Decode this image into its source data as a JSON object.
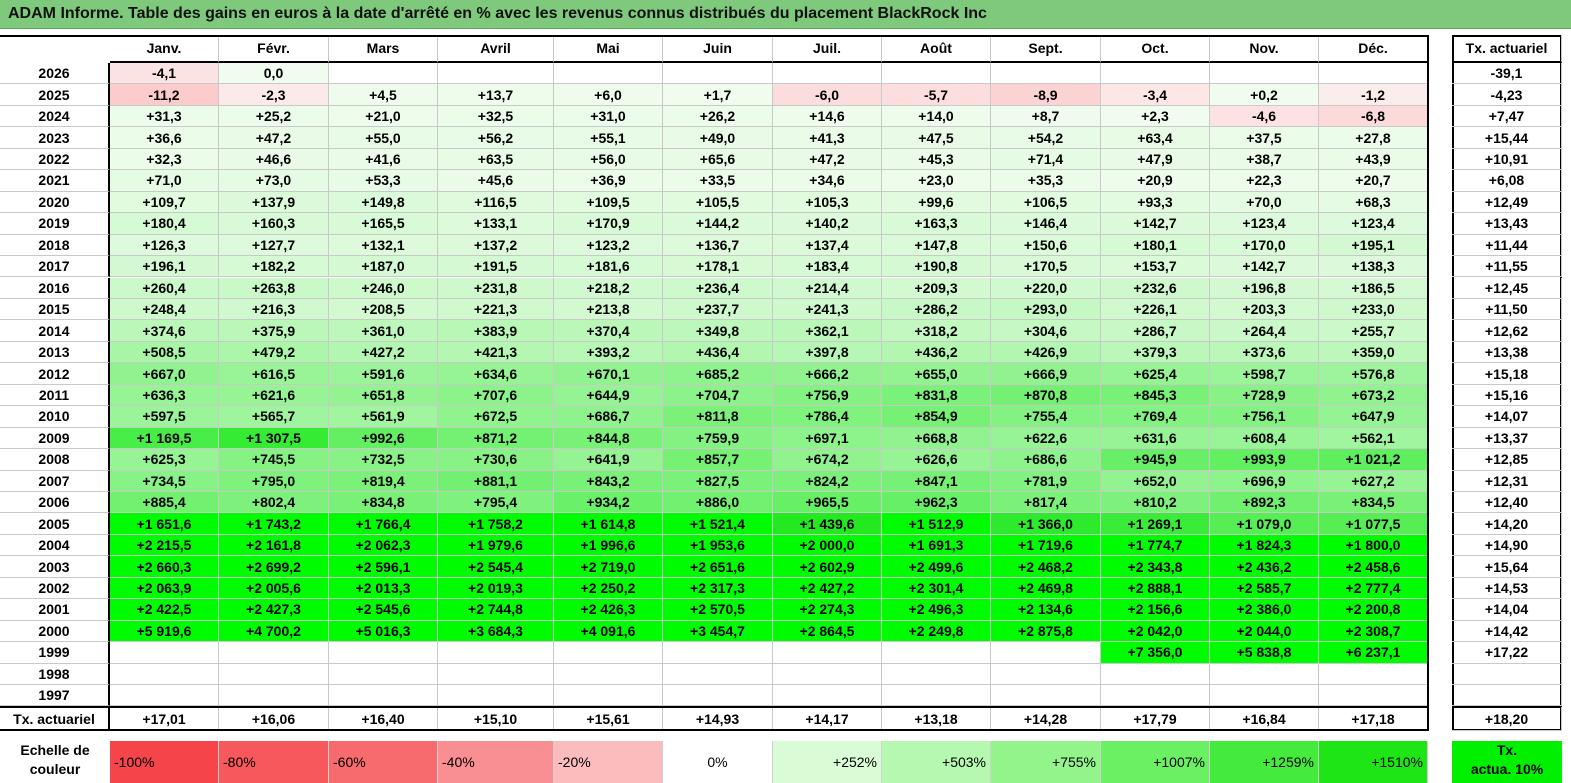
{
  "title": "ADAM Informe. Table des gains en euros à la date d'arrêté en % avec les revenus connus distribués du placement BlackRock Inc",
  "months": [
    "Janv.",
    "Févr.",
    "Mars",
    "Avril",
    "Mai",
    "Juin",
    "Juil.",
    "Août",
    "Sept.",
    "Oct.",
    "Nov.",
    "Déc."
  ],
  "tx_header": "Tx. actuariel",
  "rows": [
    {
      "year": "2026",
      "values": [
        "-4,1",
        "0,0",
        "",
        "",
        "",
        "",
        "",
        "",
        "",
        "",
        "",
        ""
      ],
      "tx": "-39,1"
    },
    {
      "year": "2025",
      "values": [
        "-11,2",
        "-2,3",
        "+4,5",
        "+13,7",
        "+6,0",
        "+1,7",
        "-6,0",
        "-5,7",
        "-8,9",
        "-3,4",
        "+0,2",
        "-1,2"
      ],
      "tx": "-4,23"
    },
    {
      "year": "2024",
      "values": [
        "+31,3",
        "+25,2",
        "+21,0",
        "+32,5",
        "+31,0",
        "+26,2",
        "+14,6",
        "+14,0",
        "+8,7",
        "+2,3",
        "-4,6",
        "-6,8"
      ],
      "tx": "+7,47"
    },
    {
      "year": "2023",
      "values": [
        "+36,6",
        "+47,2",
        "+55,0",
        "+56,2",
        "+55,1",
        "+49,0",
        "+41,3",
        "+47,5",
        "+54,2",
        "+63,4",
        "+37,5",
        "+27,8"
      ],
      "tx": "+15,44"
    },
    {
      "year": "2022",
      "values": [
        "+32,3",
        "+46,6",
        "+41,6",
        "+63,5",
        "+56,0",
        "+65,6",
        "+47,2",
        "+45,3",
        "+71,4",
        "+47,9",
        "+38,7",
        "+43,9"
      ],
      "tx": "+10,91"
    },
    {
      "year": "2021",
      "values": [
        "+71,0",
        "+73,0",
        "+53,3",
        "+45,6",
        "+36,9",
        "+33,5",
        "+34,6",
        "+23,0",
        "+35,3",
        "+20,9",
        "+22,3",
        "+20,7"
      ],
      "tx": "+6,08"
    },
    {
      "year": "2020",
      "values": [
        "+109,7",
        "+137,9",
        "+149,8",
        "+116,5",
        "+109,5",
        "+105,5",
        "+105,3",
        "+99,6",
        "+106,5",
        "+93,3",
        "+70,0",
        "+68,3"
      ],
      "tx": "+12,49"
    },
    {
      "year": "2019",
      "values": [
        "+180,4",
        "+160,3",
        "+165,5",
        "+133,1",
        "+170,9",
        "+144,2",
        "+140,2",
        "+163,3",
        "+146,4",
        "+142,7",
        "+123,4",
        "+123,4"
      ],
      "tx": "+13,43"
    },
    {
      "year": "2018",
      "values": [
        "+126,3",
        "+127,7",
        "+132,1",
        "+137,2",
        "+123,2",
        "+136,7",
        "+137,4",
        "+147,8",
        "+150,6",
        "+180,1",
        "+170,0",
        "+195,1"
      ],
      "tx": "+11,44"
    },
    {
      "year": "2017",
      "values": [
        "+196,1",
        "+182,2",
        "+187,0",
        "+191,5",
        "+181,6",
        "+178,1",
        "+183,4",
        "+190,8",
        "+170,5",
        "+153,7",
        "+142,7",
        "+138,3"
      ],
      "tx": "+11,55"
    },
    {
      "year": "2016",
      "values": [
        "+260,4",
        "+263,8",
        "+246,0",
        "+231,8",
        "+218,2",
        "+236,4",
        "+214,4",
        "+209,3",
        "+220,0",
        "+232,6",
        "+196,8",
        "+186,5"
      ],
      "tx": "+12,45"
    },
    {
      "year": "2015",
      "values": [
        "+248,4",
        "+216,3",
        "+208,5",
        "+221,3",
        "+213,8",
        "+237,7",
        "+241,3",
        "+286,2",
        "+293,0",
        "+226,1",
        "+203,3",
        "+233,0"
      ],
      "tx": "+11,50"
    },
    {
      "year": "2014",
      "values": [
        "+374,6",
        "+375,9",
        "+361,0",
        "+383,9",
        "+370,4",
        "+349,8",
        "+362,1",
        "+318,2",
        "+304,6",
        "+286,7",
        "+264,4",
        "+255,7"
      ],
      "tx": "+12,62"
    },
    {
      "year": "2013",
      "values": [
        "+508,5",
        "+479,2",
        "+427,2",
        "+421,3",
        "+393,2",
        "+436,4",
        "+397,8",
        "+436,2",
        "+426,9",
        "+379,3",
        "+373,6",
        "+359,0"
      ],
      "tx": "+13,38"
    },
    {
      "year": "2012",
      "values": [
        "+667,0",
        "+616,5",
        "+591,6",
        "+634,6",
        "+670,1",
        "+685,2",
        "+666,2",
        "+655,0",
        "+666,9",
        "+625,4",
        "+598,7",
        "+576,8"
      ],
      "tx": "+15,18"
    },
    {
      "year": "2011",
      "values": [
        "+636,3",
        "+621,6",
        "+651,8",
        "+707,6",
        "+644,9",
        "+704,7",
        "+756,9",
        "+831,8",
        "+870,8",
        "+845,3",
        "+728,9",
        "+673,2"
      ],
      "tx": "+15,16"
    },
    {
      "year": "2010",
      "values": [
        "+597,5",
        "+565,7",
        "+561,9",
        "+672,5",
        "+686,7",
        "+811,8",
        "+786,4",
        "+854,9",
        "+755,4",
        "+769,4",
        "+756,1",
        "+647,9"
      ],
      "tx": "+14,07"
    },
    {
      "year": "2009",
      "values": [
        "+1 169,5",
        "+1 307,5",
        "+992,6",
        "+871,2",
        "+844,8",
        "+759,9",
        "+697,1",
        "+668,8",
        "+622,6",
        "+631,6",
        "+608,4",
        "+562,1"
      ],
      "tx": "+13,37"
    },
    {
      "year": "2008",
      "values": [
        "+625,3",
        "+745,5",
        "+732,5",
        "+730,6",
        "+641,9",
        "+857,7",
        "+674,2",
        "+626,6",
        "+686,6",
        "+945,9",
        "+993,9",
        "+1 021,2"
      ],
      "tx": "+12,85"
    },
    {
      "year": "2007",
      "values": [
        "+734,5",
        "+795,0",
        "+819,4",
        "+881,1",
        "+843,2",
        "+827,5",
        "+824,2",
        "+847,1",
        "+781,9",
        "+652,0",
        "+696,9",
        "+627,2"
      ],
      "tx": "+12,31"
    },
    {
      "year": "2006",
      "values": [
        "+885,4",
        "+802,4",
        "+834,8",
        "+795,4",
        "+934,2",
        "+886,0",
        "+965,5",
        "+962,3",
        "+817,4",
        "+810,2",
        "+892,3",
        "+834,5"
      ],
      "tx": "+12,40"
    },
    {
      "year": "2005",
      "values": [
        "+1 651,6",
        "+1 743,2",
        "+1 766,4",
        "+1 758,2",
        "+1 614,8",
        "+1 521,4",
        "+1 439,6",
        "+1 512,9",
        "+1 366,0",
        "+1 269,1",
        "+1 079,0",
        "+1 077,5"
      ],
      "tx": "+14,20"
    },
    {
      "year": "2004",
      "values": [
        "+2 215,5",
        "+2 161,8",
        "+2 062,3",
        "+1 979,6",
        "+1 996,6",
        "+1 953,6",
        "+2 000,0",
        "+1 691,3",
        "+1 719,6",
        "+1 774,7",
        "+1 824,3",
        "+1 800,0"
      ],
      "tx": "+14,90"
    },
    {
      "year": "2003",
      "values": [
        "+2 660,3",
        "+2 699,2",
        "+2 596,1",
        "+2 545,4",
        "+2 719,0",
        "+2 651,6",
        "+2 602,9",
        "+2 499,6",
        "+2 468,2",
        "+2 343,8",
        "+2 436,2",
        "+2 458,6"
      ],
      "tx": "+15,64"
    },
    {
      "year": "2002",
      "values": [
        "+2 063,9",
        "+2 005,6",
        "+2 013,3",
        "+2 019,3",
        "+2 250,2",
        "+2 317,3",
        "+2 427,2",
        "+2 301,4",
        "+2 469,8",
        "+2 888,1",
        "+2 585,7",
        "+2 777,4"
      ],
      "tx": "+14,53"
    },
    {
      "year": "2001",
      "values": [
        "+2 422,5",
        "+2 427,3",
        "+2 545,6",
        "+2 744,8",
        "+2 426,3",
        "+2 570,5",
        "+2 274,3",
        "+2 496,3",
        "+2 134,6",
        "+2 156,6",
        "+2 386,0",
        "+2 200,8"
      ],
      "tx": "+14,04"
    },
    {
      "year": "2000",
      "values": [
        "+5 919,6",
        "+4 700,2",
        "+5 016,3",
        "+3 684,3",
        "+4 091,6",
        "+3 454,7",
        "+2 864,5",
        "+2 249,8",
        "+2 875,8",
        "+2 042,0",
        "+2 044,0",
        "+2 308,7"
      ],
      "tx": "+14,42"
    },
    {
      "year": "1999",
      "values": [
        "",
        "",
        "",
        "",
        "",
        "",
        "",
        "",
        "",
        "+7 356,0",
        "+5 838,8",
        "+6 237,1"
      ],
      "tx": "+17,22"
    },
    {
      "year": "1998",
      "values": [
        "",
        "",
        "",
        "",
        "",
        "",
        "",
        "",
        "",
        "",
        "",
        ""
      ],
      "tx": ""
    },
    {
      "year": "1997",
      "values": [
        "",
        "",
        "",
        "",
        "",
        "",
        "",
        "",
        "",
        "",
        "",
        ""
      ],
      "tx": ""
    }
  ],
  "footer": {
    "label": "Tx. actuariel",
    "values": [
      "+17,01",
      "+16,06",
      "+16,40",
      "+15,10",
      "+15,61",
      "+14,93",
      "+14,17",
      "+13,18",
      "+14,28",
      "+17,79",
      "+16,84",
      "+17,18"
    ],
    "tx": "+18,20"
  },
  "scale": {
    "label_line1": "Echelle de",
    "label_line2": "couleur",
    "items": [
      {
        "label": "-100%",
        "color": "#f5454a",
        "align": "left"
      },
      {
        "label": "-80%",
        "color": "#f6585c",
        "align": "left"
      },
      {
        "label": "-60%",
        "color": "#f76b6f",
        "align": "left"
      },
      {
        "label": "-40%",
        "color": "#f98f92",
        "align": "left"
      },
      {
        "label": "-20%",
        "color": "#fbbcbe",
        "align": "left"
      },
      {
        "label": "0%",
        "color": "#ffffff",
        "align": "center"
      },
      {
        "label": "+252%",
        "color": "#d9fcd6",
        "align": "right"
      },
      {
        "label": "+503%",
        "color": "#b6f8b0",
        "align": "right"
      },
      {
        "label": "+755%",
        "color": "#92f48a",
        "align": "right"
      },
      {
        "label": "+1007%",
        "color": "#6cf063",
        "align": "right"
      },
      {
        "label": "+1259%",
        "color": "#45eb3c",
        "align": "right"
      },
      {
        "label": "+1510%",
        "color": "#1ee515",
        "align": "right"
      }
    ],
    "tx_line1": "Tx.",
    "tx_line2": "actua. 10%",
    "tx_color": "#00f000"
  }
}
